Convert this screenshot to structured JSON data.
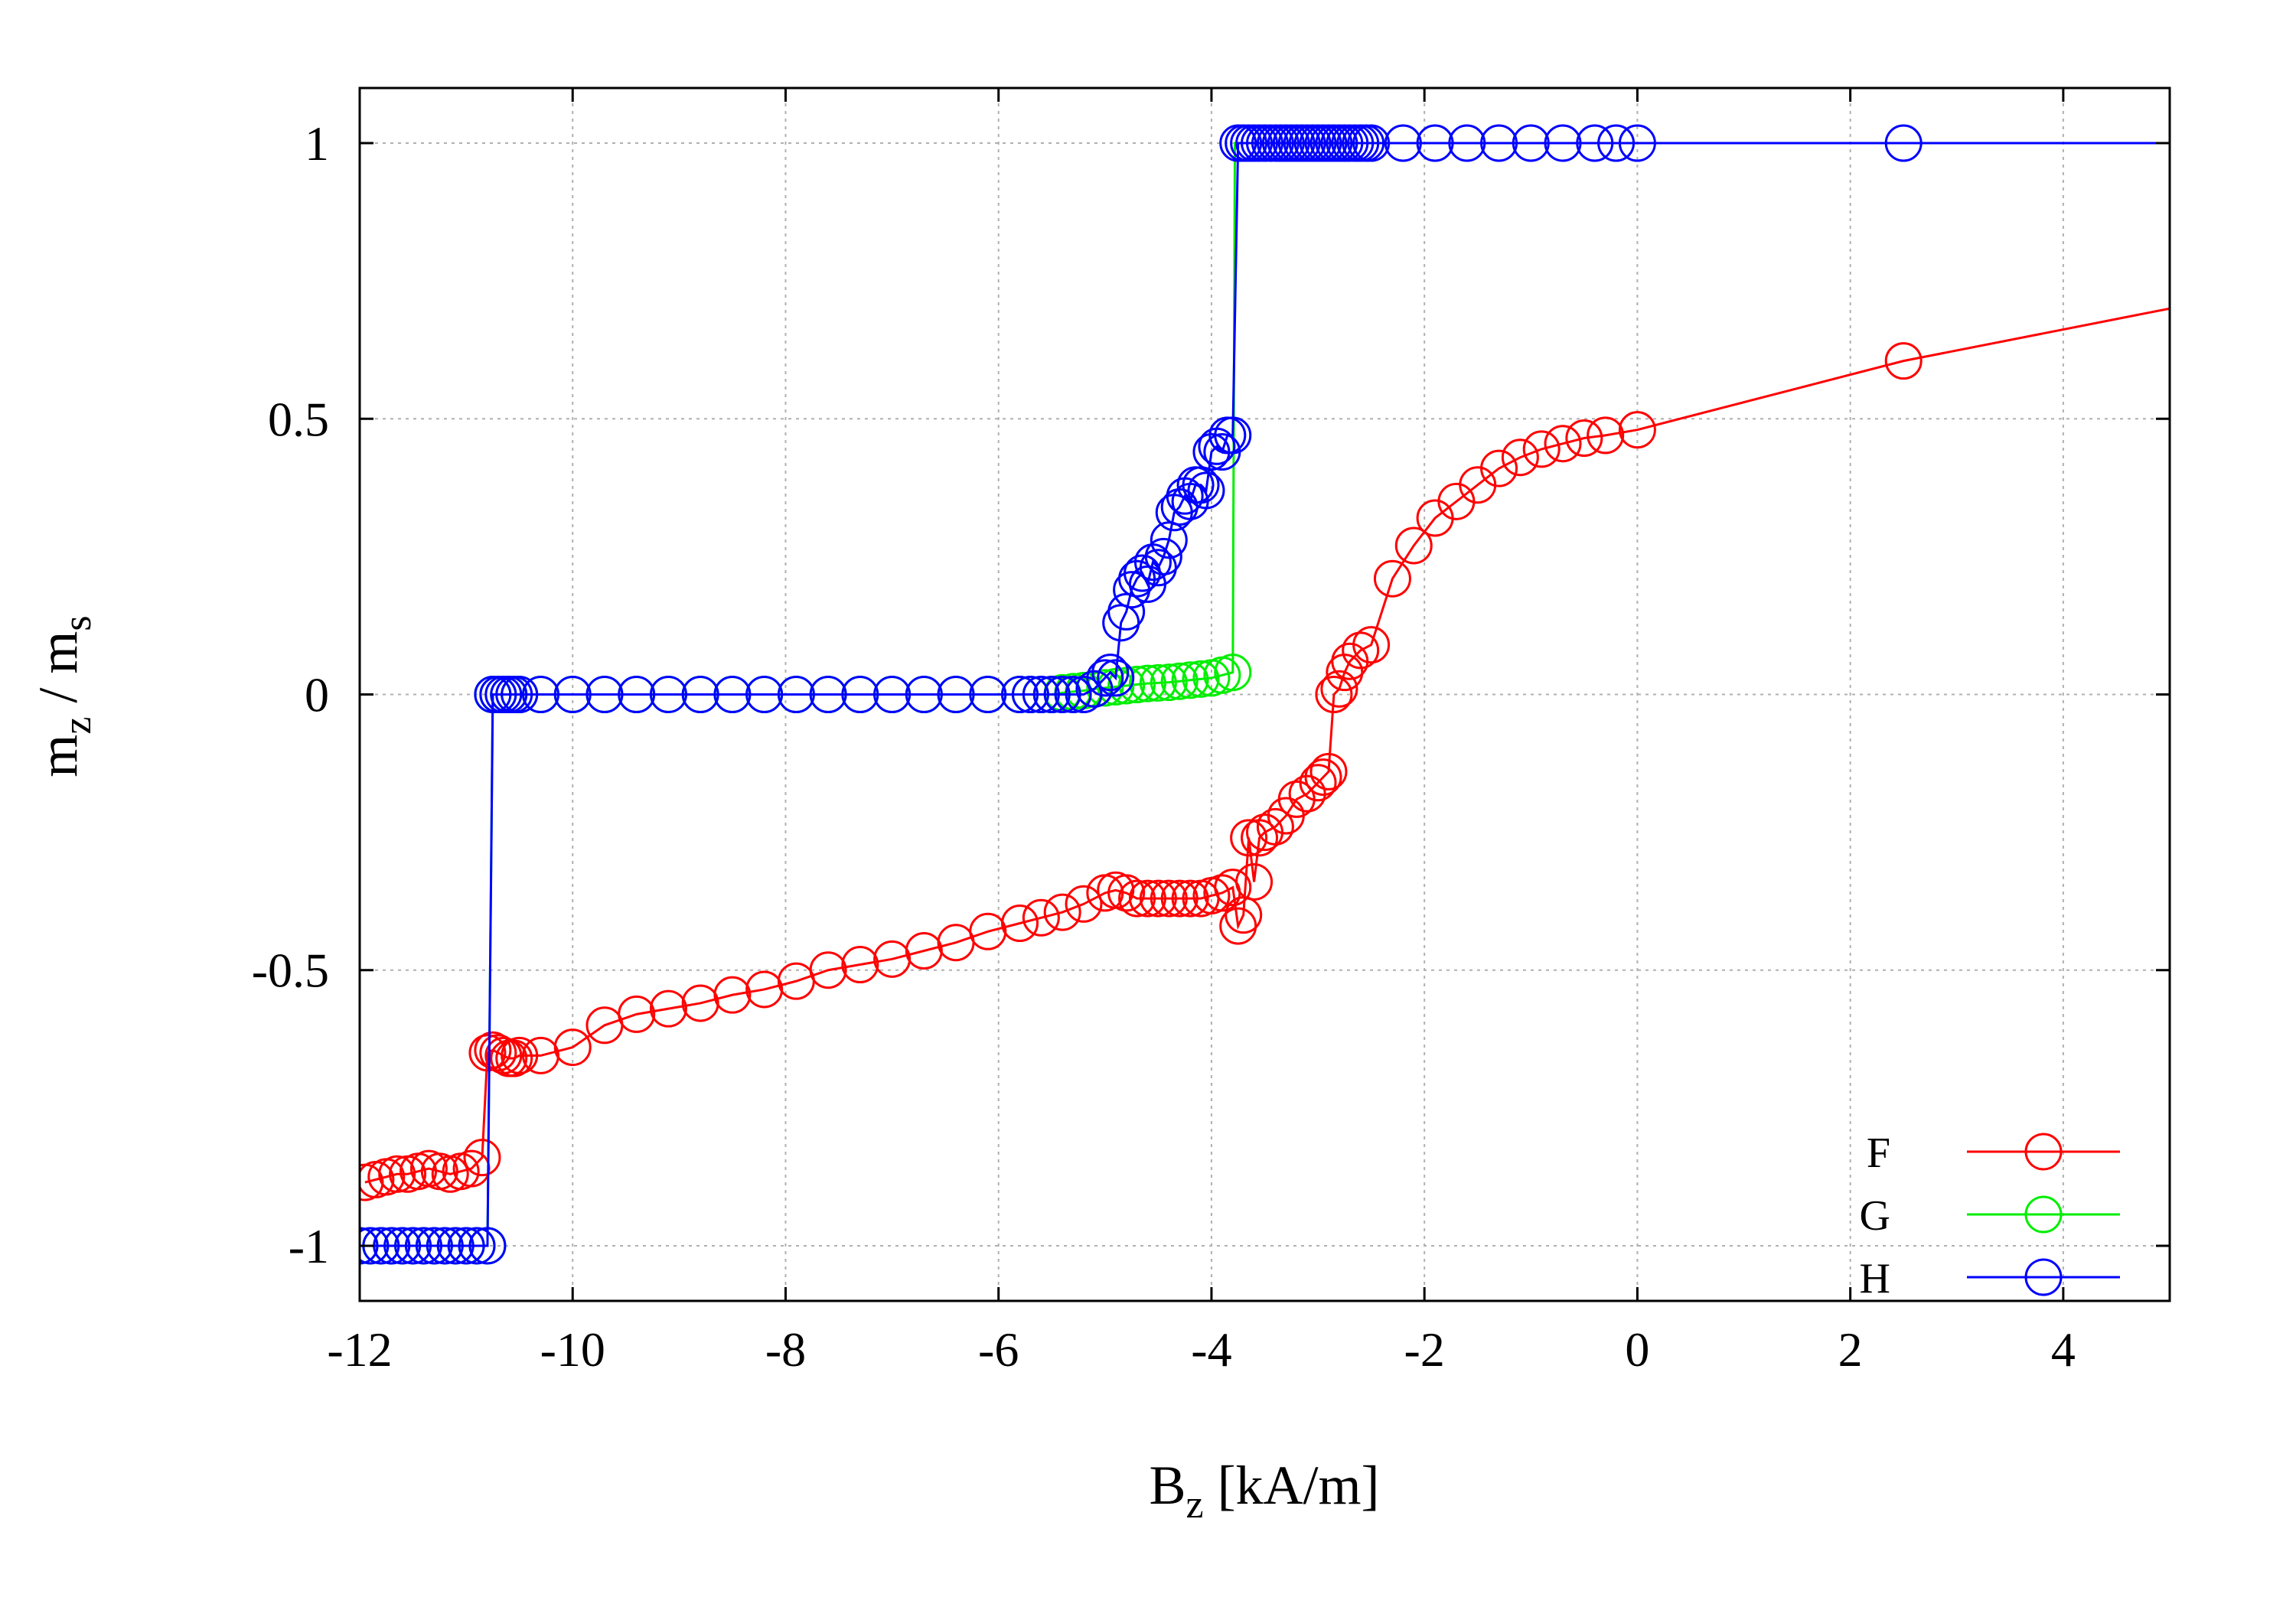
{
  "chart_data": {
    "type": "line",
    "title": "",
    "xlabel": {
      "main": "B",
      "sub": "z",
      "rest": " [kA/m]"
    },
    "ylabel": {
      "part1": "m",
      "sub1": "z",
      "mid": " / m",
      "sub2": "s"
    },
    "xlim": [
      -12,
      5
    ],
    "ylim": [
      -1.1,
      1.1
    ],
    "xticks": [
      -12,
      -10,
      -8,
      -6,
      -4,
      -2,
      0,
      2,
      4
    ],
    "xtick_labels": [
      "-12",
      "-10",
      "-8",
      "-6",
      "-4",
      "-2",
      "0",
      "2",
      "4"
    ],
    "yticks": [
      -1,
      -0.5,
      0,
      0.5,
      1
    ],
    "ytick_labels": [
      "-1",
      "-0.5",
      "0",
      "0.5",
      "1"
    ],
    "grid": true,
    "legend_position": "bottom-right",
    "series": [
      {
        "name": "F",
        "color": "#ff0000",
        "x": [
          -11.95,
          -11.85,
          -11.75,
          -11.65,
          -11.55,
          -11.45,
          -11.35,
          -11.25,
          -11.15,
          -11.05,
          -10.95,
          -10.85,
          -10.8,
          -10.75,
          -10.7,
          -10.65,
          -10.6,
          -10.55,
          -10.5,
          -10.3,
          -10.0,
          -9.7,
          -9.4,
          -9.1,
          -8.8,
          -8.5,
          -8.2,
          -7.9,
          -7.6,
          -7.3,
          -7.0,
          -6.7,
          -6.4,
          -6.1,
          -5.8,
          -5.6,
          -5.4,
          -5.2,
          -5.0,
          -4.9,
          -4.8,
          -4.7,
          -4.6,
          -4.5,
          -4.4,
          -4.3,
          -4.2,
          -4.1,
          -4.0,
          -3.9,
          -3.8,
          -3.75,
          -3.7,
          -3.65,
          -3.6,
          -3.55,
          -3.5,
          -3.4,
          -3.3,
          -3.2,
          -3.1,
          -3.0,
          -2.95,
          -2.9,
          -2.85,
          -2.8,
          -2.75,
          -2.7,
          -2.6,
          -2.5,
          -2.3,
          -2.1,
          -1.9,
          -1.7,
          -1.5,
          -1.3,
          -1.1,
          -0.9,
          -0.7,
          -0.5,
          -0.3,
          0.0,
          2.5,
          5.0
        ],
        "y": [
          -0.885,
          -0.88,
          -0.875,
          -0.87,
          -0.87,
          -0.865,
          -0.86,
          -0.865,
          -0.87,
          -0.865,
          -0.86,
          -0.84,
          -0.65,
          -0.645,
          -0.65,
          -0.655,
          -0.66,
          -0.66,
          -0.655,
          -0.655,
          -0.64,
          -0.6,
          -0.58,
          -0.57,
          -0.56,
          -0.545,
          -0.535,
          -0.52,
          -0.5,
          -0.49,
          -0.48,
          -0.465,
          -0.45,
          -0.43,
          -0.415,
          -0.405,
          -0.395,
          -0.38,
          -0.36,
          -0.355,
          -0.36,
          -0.37,
          -0.37,
          -0.37,
          -0.37,
          -0.37,
          -0.37,
          -0.37,
          -0.365,
          -0.36,
          -0.35,
          -0.42,
          -0.4,
          -0.26,
          -0.34,
          -0.26,
          -0.25,
          -0.24,
          -0.22,
          -0.19,
          -0.18,
          -0.16,
          -0.15,
          -0.14,
          0.0,
          0.01,
          0.04,
          0.06,
          0.08,
          0.09,
          0.21,
          0.27,
          0.32,
          0.35,
          0.38,
          0.41,
          0.43,
          0.445,
          0.455,
          0.465,
          0.47,
          0.48,
          0.605,
          0.7
        ],
        "marker_count": 83
      },
      {
        "name": "G",
        "color": "#00ee00",
        "x": [
          -12.0,
          -11.9,
          -11.8,
          -11.7,
          -11.6,
          -11.5,
          -11.4,
          -11.3,
          -11.2,
          -11.1,
          -11.0,
          -10.9,
          -10.8,
          -10.75,
          -10.7,
          -10.6,
          -10.5,
          -10.3,
          -10.0,
          -9.7,
          -9.4,
          -9.1,
          -8.8,
          -8.5,
          -8.2,
          -7.9,
          -7.6,
          -7.3,
          -7.0,
          -6.7,
          -6.4,
          -6.1,
          -5.8,
          -5.7,
          -5.6,
          -5.5,
          -5.4,
          -5.3,
          -5.2,
          -5.1,
          -5.0,
          -4.9,
          -4.8,
          -4.7,
          -4.6,
          -4.5,
          -4.4,
          -4.3,
          -4.2,
          -4.1,
          -4.0,
          -3.9,
          -3.8,
          -3.78,
          -3.76
        ],
        "y": [
          -1,
          -1,
          -1,
          -1,
          -1,
          -1,
          -1,
          -1,
          -1,
          -1,
          -1,
          -1,
          -1,
          0.0,
          0.0,
          0.0,
          0.0,
          0.0,
          0.0,
          0.0,
          0.0,
          0.0,
          0.0,
          0.0,
          0.0,
          0.0,
          0.0,
          0.0,
          0.0,
          0.0,
          0.0,
          0.0,
          0.0,
          0.0,
          0.0,
          0.0,
          0.003,
          0.005,
          0.007,
          0.01,
          0.012,
          0.014,
          0.016,
          0.018,
          0.02,
          0.021,
          0.022,
          0.024,
          0.026,
          0.028,
          0.03,
          0.035,
          0.04,
          1.0,
          1.0
        ],
        "marker_count": 53
      },
      {
        "name": "H",
        "color": "#0000ff",
        "x": [
          -12.0,
          -11.9,
          -11.8,
          -11.7,
          -11.6,
          -11.5,
          -11.4,
          -11.3,
          -11.2,
          -11.1,
          -11.0,
          -10.9,
          -10.8,
          -10.75,
          -10.7,
          -10.65,
          -10.6,
          -10.55,
          -10.5,
          -10.3,
          -10.0,
          -9.7,
          -9.4,
          -9.1,
          -8.8,
          -8.5,
          -8.2,
          -7.9,
          -7.6,
          -7.3,
          -7.0,
          -6.7,
          -6.4,
          -6.1,
          -5.8,
          -5.7,
          -5.6,
          -5.5,
          -5.4,
          -5.3,
          -5.2,
          -5.1,
          -5.0,
          -4.95,
          -4.9,
          -4.85,
          -4.8,
          -4.75,
          -4.7,
          -4.65,
          -4.6,
          -4.55,
          -4.5,
          -4.45,
          -4.4,
          -4.35,
          -4.3,
          -4.25,
          -4.2,
          -4.15,
          -4.1,
          -4.05,
          -4.0,
          -3.95,
          -3.9,
          -3.85,
          -3.8,
          -3.75,
          -3.7,
          -3.65,
          -3.6,
          -3.55,
          -3.5,
          -3.45,
          -3.4,
          -3.35,
          -3.3,
          -3.25,
          -3.2,
          -3.15,
          -3.1,
          -3.05,
          -3.0,
          -2.95,
          -2.9,
          -2.85,
          -2.8,
          -2.75,
          -2.7,
          -2.65,
          -2.6,
          -2.55,
          -2.5,
          -2.2,
          -1.9,
          -1.6,
          -1.3,
          -1.0,
          -0.7,
          -0.4,
          -0.2,
          0.0,
          2.5,
          5.0
        ],
        "y": [
          -1,
          -1,
          -1,
          -1,
          -1,
          -1,
          -1,
          -1,
          -1,
          -1,
          -1,
          -1,
          -1,
          0.0,
          0.0,
          0.0,
          0.0,
          0.0,
          0.0,
          0.0,
          0.0,
          0.0,
          0.0,
          0.0,
          0.0,
          0.0,
          0.0,
          0.0,
          0.0,
          0.0,
          0.0,
          0.0,
          0.0,
          0.0,
          0.0,
          0.0,
          0.0,
          0.0,
          0.0,
          0.0,
          0.0,
          0.01,
          0.03,
          0.04,
          0.03,
          0.13,
          0.15,
          0.19,
          0.21,
          0.22,
          0.2,
          0.24,
          0.23,
          0.25,
          0.28,
          0.33,
          0.34,
          0.36,
          0.35,
          0.38,
          0.38,
          0.37,
          0.44,
          0.45,
          0.44,
          0.47,
          0.47,
          1.0,
          1.0,
          1.0,
          1.0,
          1.0,
          1.0,
          1.0,
          1.0,
          1.0,
          1.0,
          1.0,
          1.0,
          1.0,
          1.0,
          1.0,
          1.0,
          1.0,
          1.0,
          1.0,
          1.0,
          1.0,
          1.0,
          1.0,
          1.0,
          1.0,
          1.0,
          1.0,
          1.0,
          1.0,
          1.0,
          1.0,
          1.0,
          1.0,
          1.0,
          1.0,
          1.0,
          1.0
        ],
        "marker_count": 103
      }
    ]
  }
}
